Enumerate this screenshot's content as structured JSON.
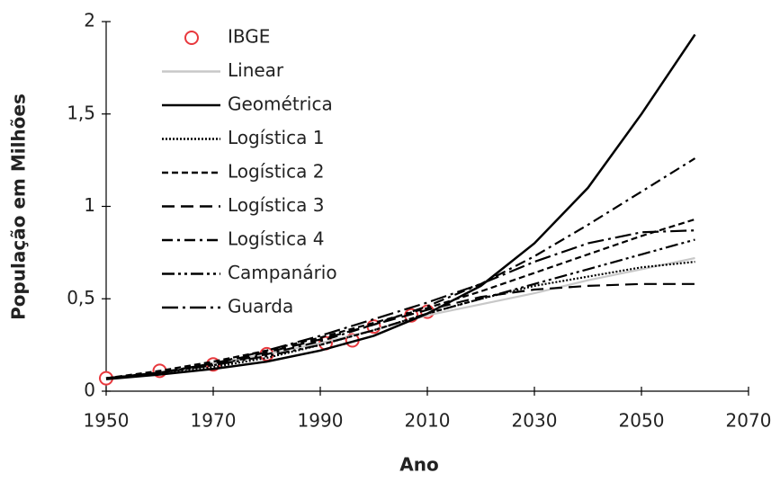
{
  "chart_data": {
    "type": "line",
    "xlabel": "Ano",
    "ylabel": "População  em Milhões",
    "x": [
      1950,
      1960,
      1970,
      1980,
      1990,
      2000,
      2010,
      2020,
      2030,
      2040,
      2050,
      2060
    ],
    "xlim": [
      1950,
      2070
    ],
    "xticks": [
      1950,
      1970,
      1990,
      2010,
      2030,
      2050,
      2070
    ],
    "ylim": [
      0,
      2
    ],
    "yticks": [
      0,
      {
        "value": 0.5,
        "label": "0,5"
      },
      1,
      {
        "value": 1.5,
        "label": "1,5"
      },
      2
    ],
    "grid": false,
    "legend": "upper left",
    "series": [
      {
        "name": "IBGE",
        "color": "#e8383d",
        "marker": "circle",
        "x": [
          1950,
          1960,
          1970,
          1980,
          1991,
          1996,
          2000,
          2007,
          2010
        ],
        "values": [
          0.07,
          0.11,
          0.145,
          0.2,
          0.26,
          0.275,
          0.35,
          0.41,
          0.43
        ]
      },
      {
        "name": "Linear",
        "color": "#c8c8c8",
        "style": "solid",
        "values": [
          0.07,
          0.1,
          0.15,
          0.2,
          0.26,
          0.33,
          0.41,
          0.47,
          0.53,
          0.6,
          0.66,
          0.72
        ]
      },
      {
        "name": "Geométrica",
        "color": "#000000",
        "style": "solid",
        "values": [
          0.065,
          0.09,
          0.12,
          0.16,
          0.22,
          0.3,
          0.42,
          0.57,
          0.8,
          1.1,
          1.5,
          1.93
        ]
      },
      {
        "name": "Logística 1",
        "color": "#000000",
        "style": "dotted",
        "values": [
          0.07,
          0.09,
          0.13,
          0.18,
          0.25,
          0.33,
          0.42,
          0.5,
          0.57,
          0.62,
          0.67,
          0.7
        ]
      },
      {
        "name": "Logística 2",
        "color": "#000000",
        "style": "dashed",
        "values": [
          0.07,
          0.11,
          0.16,
          0.22,
          0.29,
          0.37,
          0.45,
          0.54,
          0.64,
          0.74,
          0.84,
          0.93
        ]
      },
      {
        "name": "Logística 3",
        "color": "#000000",
        "style": "longdash",
        "values": [
          0.07,
          0.1,
          0.15,
          0.21,
          0.28,
          0.36,
          0.44,
          0.51,
          0.55,
          0.57,
          0.58,
          0.58
        ]
      },
      {
        "name": "Logística 4",
        "color": "#000000",
        "style": "dashdot",
        "values": [
          0.07,
          0.1,
          0.14,
          0.2,
          0.27,
          0.36,
          0.46,
          0.58,
          0.73,
          0.9,
          1.08,
          1.26
        ]
      },
      {
        "name": "Campanário",
        "color": "#000000",
        "style": "dashdotdot",
        "values": [
          0.07,
          0.1,
          0.14,
          0.19,
          0.25,
          0.33,
          0.42,
          0.5,
          0.58,
          0.66,
          0.74,
          0.82
        ]
      },
      {
        "name": "Guarda",
        "color": "#000000",
        "style": "longdashdot",
        "values": [
          0.07,
          0.1,
          0.15,
          0.22,
          0.3,
          0.39,
          0.48,
          0.58,
          0.7,
          0.8,
          0.86,
          0.87
        ]
      }
    ]
  }
}
